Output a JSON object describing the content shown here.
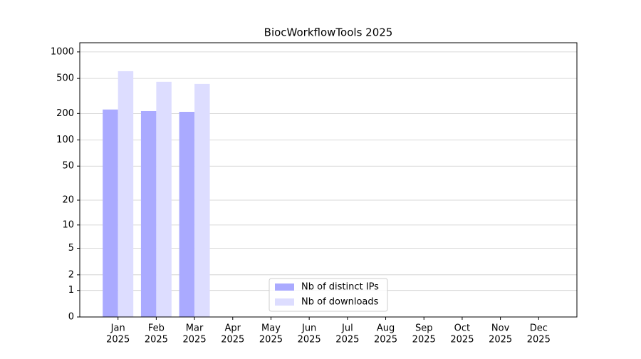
{
  "chart_data": {
    "type": "bar",
    "title": "BiocWorkflowTools 2025",
    "categories": [
      [
        "Jan",
        "2025"
      ],
      [
        "Feb",
        "2025"
      ],
      [
        "Mar",
        "2025"
      ],
      [
        "Apr",
        "2025"
      ],
      [
        "May",
        "2025"
      ],
      [
        "Jun",
        "2025"
      ],
      [
        "Jul",
        "2025"
      ],
      [
        "Aug",
        "2025"
      ],
      [
        "Sep",
        "2025"
      ],
      [
        "Oct",
        "2025"
      ],
      [
        "Nov",
        "2025"
      ],
      [
        "Dec",
        "2025"
      ]
    ],
    "series": [
      {
        "name": "Nb of distinct IPs",
        "color": "#aaaaff",
        "values": [
          222,
          213,
          209,
          null,
          null,
          null,
          null,
          null,
          null,
          null,
          null,
          null
        ]
      },
      {
        "name": "Nb of downloads",
        "color": "#ddddff",
        "values": [
          605,
          458,
          433,
          null,
          null,
          null,
          null,
          null,
          null,
          null,
          null,
          null
        ]
      }
    ],
    "yscale": "symlog",
    "ylim": [
      0,
      1270
    ],
    "yticks": [
      0,
      1,
      2,
      5,
      10,
      20,
      50,
      100,
      200,
      500,
      1000
    ],
    "grid": true,
    "legend": "lower center"
  }
}
